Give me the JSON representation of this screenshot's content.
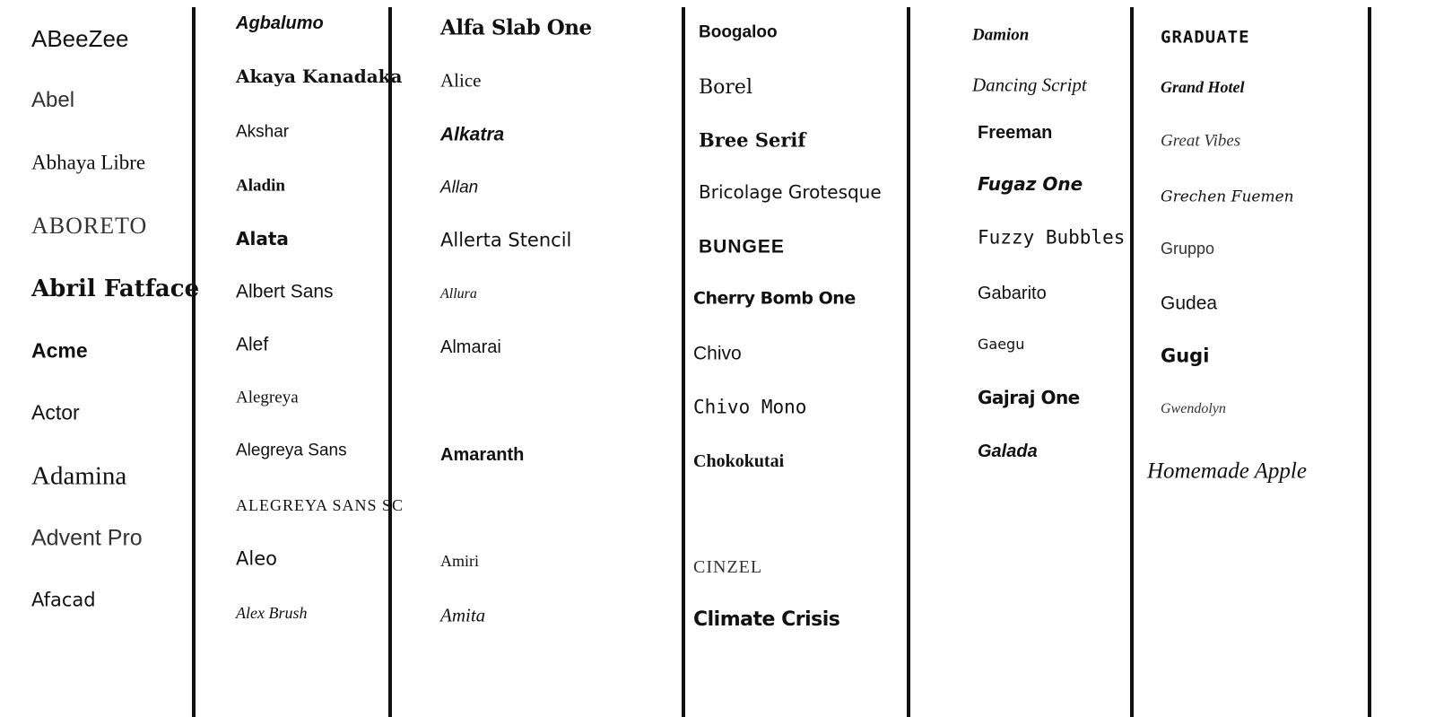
{
  "columns": [
    {
      "fonts": [
        "ABeeZee",
        "Abel",
        "Abhaya Libre",
        "ABORETO",
        "Abril Fatface",
        "Acme",
        "Actor",
        "Adamina",
        "Advent Pro",
        "Afacad"
      ]
    },
    {
      "fonts": [
        "Agbalumo",
        "Akaya Kanadaka",
        "Akshar",
        "Aladin",
        "Alata",
        "Albert Sans",
        "Alef",
        "Alegreya",
        "Alegreya Sans",
        "Alegreya Sans SC",
        "Aleo",
        "Alex Brush"
      ]
    },
    {
      "fonts": [
        "Alfa Slab One",
        "Alice",
        "Alkatra",
        "Allan",
        "Allerta Stencil",
        "Allura",
        "Almarai",
        "Amaranth",
        "Amiri",
        "Amita"
      ]
    },
    {
      "fonts": [
        "Boogaloo",
        "Borel",
        "Bree Serif",
        "Bricolage Grotesque",
        "BUNGEE",
        "Cherry Bomb One",
        "Chivo",
        "Chivo Mono",
        "Chokokutai",
        "CINZEL",
        "Climate Crisis"
      ]
    },
    {
      "fonts": [
        "Damion",
        "Dancing Script",
        "Freeman",
        "Fugaz One",
        "Fuzzy Bubbles",
        "Gabarito",
        "Gaegu",
        "Gajraj One",
        "Galada"
      ]
    },
    {
      "fonts": [
        "GRADUATE",
        "Grand Hotel",
        "Great Vibes",
        "Grechen Fuemen",
        "Gruppo",
        "Gudea",
        "Gugi",
        "Gwendolyn",
        "Homemade Apple"
      ]
    }
  ]
}
